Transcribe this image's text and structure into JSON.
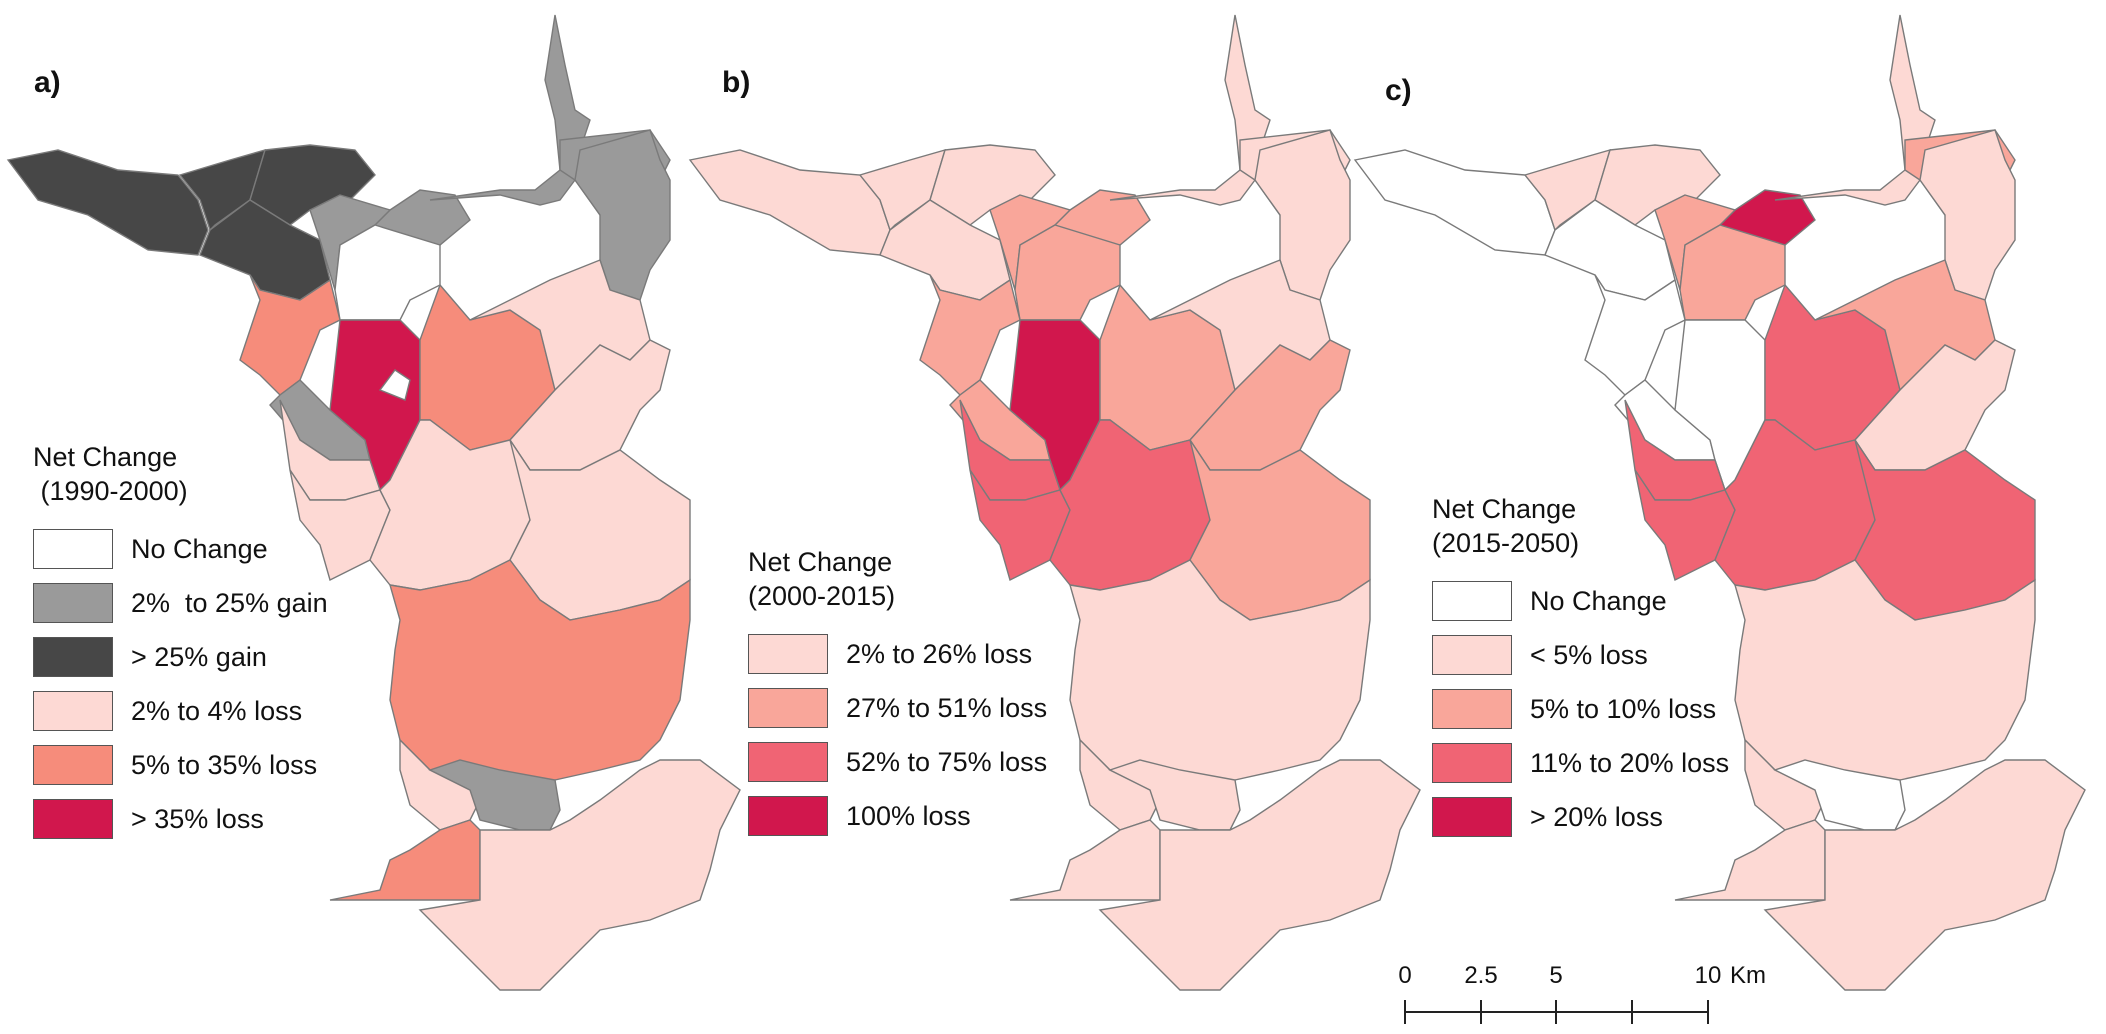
{
  "figure": {
    "colors": {
      "no_change": "#ffffff",
      "gain_small": "#9a9a9a",
      "gain_large": "#474747",
      "loss_light": "#fdd9d4",
      "loss_mid": "#f9a69a",
      "loss_salmon": "#f68c7b",
      "loss_strong": "#f06474",
      "loss_max": "#d1174d",
      "outline": "#7a7a7a"
    },
    "panels": [
      {
        "label": "a)",
        "legend": {
          "title_line1": "Net Change",
          "title_line2": " (1990-2000)",
          "items": [
            {
              "label": "No Change",
              "color": "#ffffff"
            },
            {
              "label": "2%  to 25% gain",
              "color": "#9a9a9a"
            },
            {
              "label": "> 25% gain",
              "color": "#474747"
            },
            {
              "label": "2% to 4% loss",
              "color": "#fdd9d4"
            },
            {
              "label": "5% to 35% loss",
              "color": "#f68c7b"
            },
            {
              "label": "> 35% loss",
              "color": "#d1174d"
            }
          ]
        }
      },
      {
        "label": "b)",
        "legend": {
          "title_line1": "Net Change",
          "title_line2": "(2000-2015)",
          "items": [
            {
              "label": "2% to 26% loss",
              "color": "#fdd9d4"
            },
            {
              "label": "27% to 51% loss",
              "color": "#f9a69a"
            },
            {
              "label": "52% to 75% loss",
              "color": "#f06474"
            },
            {
              "label": "100% loss",
              "color": "#d1174d"
            }
          ]
        }
      },
      {
        "label": "c)",
        "legend": {
          "title_line1": "Net Change",
          "title_line2": "(2015-2050)",
          "items": [
            {
              "label": "No Change",
              "color": "#ffffff"
            },
            {
              "label": "< 5% loss",
              "color": "#fdd9d4"
            },
            {
              "label": "5% to 10% loss",
              "color": "#f9a69a"
            },
            {
              "label": "11% to 20% loss",
              "color": "#f06474"
            },
            {
              "label": "> 20% loss",
              "color": "#d1174d"
            }
          ]
        }
      }
    ],
    "scale_bar": {
      "ticks": [
        "0",
        "2.5",
        "5",
        "10"
      ],
      "unit": "Km"
    }
  }
}
